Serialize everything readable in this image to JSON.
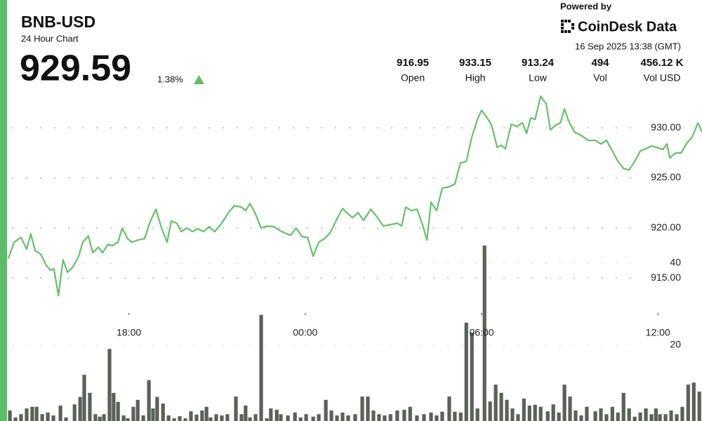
{
  "header": {
    "symbol": "BNB-USD",
    "subtitle": "24 Hour Chart",
    "price": "929.59",
    "change": "1.38%"
  },
  "brand": {
    "powered": "Powered by",
    "name": "CoinDesk Data",
    "timestamp": "16 Sep 2025 13:38 (GMT)"
  },
  "stats": [
    {
      "value": "916.95",
      "label": "Open"
    },
    {
      "value": "933.15",
      "label": "High"
    },
    {
      "value": "913.24",
      "label": "Low"
    },
    {
      "value": "494",
      "label": "Vol"
    },
    {
      "value": "456.12 K",
      "label": "Vol USD"
    }
  ],
  "chart_data": [
    {
      "type": "line",
      "color": "#66c06a",
      "grid": true,
      "xlim": [
        13.9,
        37.5
      ],
      "xticks": [
        {
          "value": 18,
          "label": "18:00"
        },
        {
          "value": 24,
          "label": "00:00"
        },
        {
          "value": 30,
          "label": "06:00"
        },
        {
          "value": 36,
          "label": "12:00"
        }
      ],
      "ylim": [
        912,
        934
      ],
      "yticks": [
        {
          "value": 915,
          "label": "915.00"
        },
        {
          "value": 920,
          "label": "920.00"
        },
        {
          "value": 925,
          "label": "925.00"
        },
        {
          "value": 930,
          "label": "930.00"
        }
      ],
      "x": [
        13.9,
        14.09,
        14.33,
        14.52,
        14.66,
        14.81,
        15.0,
        15.19,
        15.33,
        15.45,
        15.6,
        15.76,
        15.91,
        16.1,
        16.29,
        16.43,
        16.62,
        16.77,
        16.96,
        17.1,
        17.29,
        17.44,
        17.63,
        17.77,
        17.96,
        18.1,
        18.3,
        18.53,
        18.73,
        18.92,
        19.11,
        19.3,
        19.44,
        19.63,
        19.78,
        19.97,
        20.16,
        20.35,
        20.54,
        20.73,
        20.92,
        21.16,
        21.4,
        21.59,
        21.83,
        21.97,
        22.12,
        22.31,
        22.5,
        22.69,
        22.93,
        23.12,
        23.31,
        23.5,
        23.69,
        23.89,
        24.08,
        24.27,
        24.46,
        24.65,
        24.84,
        25.08,
        25.27,
        25.41,
        25.61,
        25.8,
        25.99,
        26.23,
        26.42,
        26.66,
        26.9,
        27.13,
        27.28,
        27.42,
        27.61,
        27.8,
        27.99,
        28.14,
        28.28,
        28.47,
        28.66,
        28.9,
        29.09,
        29.28,
        29.48,
        29.67,
        29.86,
        30.0,
        30.19,
        30.34,
        30.53,
        30.67,
        30.81,
        31.01,
        31.2,
        31.39,
        31.53,
        31.67,
        31.82,
        32.01,
        32.2,
        32.34,
        32.53,
        32.68,
        32.82,
        32.96,
        33.16,
        33.39,
        33.63,
        33.87,
        34.06,
        34.25,
        34.45,
        34.64,
        34.83,
        35.02,
        35.21,
        35.4,
        35.59,
        35.78,
        35.97,
        36.17,
        36.31,
        36.4,
        36.6,
        36.79,
        36.98,
        37.17,
        37.36,
        37.5
      ],
      "values": [
        916.95,
        918.57,
        919.06,
        917.87,
        919.41,
        917.73,
        917.38,
        916.26,
        915.77,
        915.91,
        913.24,
        916.82,
        915.56,
        916.12,
        917.17,
        918.57,
        919.2,
        917.52,
        918.08,
        917.52,
        918.36,
        918.22,
        918.57,
        919.98,
        918.92,
        918.57,
        918.78,
        918.92,
        920.68,
        921.87,
        919.98,
        918.57,
        920.68,
        920.47,
        919.63,
        919.98,
        919.63,
        919.91,
        919.63,
        920.12,
        919.63,
        920.47,
        921.59,
        922.22,
        922.08,
        921.73,
        922.43,
        921.38,
        919.98,
        920.19,
        920.12,
        919.77,
        919.48,
        919.27,
        919.98,
        919.13,
        919.06,
        917.17,
        918.57,
        918.92,
        919.48,
        920.89,
        921.94,
        921.52,
        921.03,
        921.52,
        920.75,
        921.87,
        921.17,
        920.19,
        920.33,
        920.47,
        920.19,
        922.08,
        921.73,
        921.87,
        920.33,
        918.78,
        922.57,
        921.73,
        923.97,
        924.11,
        924.39,
        926.49,
        926.64,
        929.09,
        930.84,
        931.75,
        930.98,
        930.28,
        928.04,
        928.25,
        927.9,
        930.35,
        930.14,
        930.49,
        929.44,
        930.98,
        930.84,
        933.15,
        932.38,
        929.79,
        930.28,
        930.49,
        931.89,
        930.7,
        929.58,
        929.23,
        928.74,
        928.74,
        928.39,
        928.74,
        927.69,
        926.64,
        925.93,
        925.79,
        926.64,
        927.69,
        927.9,
        928.18,
        928.04,
        927.83,
        928.39,
        926.99,
        927.48,
        927.48,
        928.46,
        929.09,
        930.49,
        929.59
      ]
    },
    {
      "type": "bar",
      "color": "#5b6159",
      "xlim": [
        13.9,
        37.5
      ],
      "ylim": [
        0,
        44.5
      ],
      "yticks": [
        20,
        40
      ],
      "x": [
        13.95,
        14.14,
        14.33,
        14.52,
        14.71,
        14.86,
        15.05,
        15.24,
        15.43,
        15.67,
        15.86,
        16.15,
        16.34,
        16.48,
        16.67,
        16.86,
        17.01,
        17.15,
        17.34,
        17.48,
        17.63,
        17.82,
        17.96,
        18.15,
        18.3,
        18.49,
        18.68,
        18.82,
        18.96,
        19.16,
        19.35,
        19.54,
        19.73,
        19.92,
        20.11,
        20.3,
        20.49,
        20.64,
        20.78,
        20.97,
        21.16,
        21.35,
        21.64,
        21.83,
        21.97,
        22.12,
        22.31,
        22.5,
        22.69,
        22.83,
        23.03,
        23.17,
        23.41,
        23.65,
        23.84,
        24.03,
        24.27,
        24.46,
        24.7,
        24.89,
        25.08,
        25.27,
        25.46,
        25.7,
        25.94,
        26.13,
        26.32,
        26.51,
        26.7,
        26.9,
        27.13,
        27.37,
        27.57,
        27.8,
        28.04,
        28.28,
        28.47,
        28.66,
        28.9,
        29.09,
        29.29,
        29.48,
        29.67,
        29.86,
        30.1,
        30.29,
        30.48,
        30.67,
        30.86,
        31.05,
        31.24,
        31.44,
        31.63,
        31.82,
        32.01,
        32.25,
        32.44,
        32.63,
        32.82,
        33.01,
        33.2,
        33.39,
        33.58,
        33.87,
        34.06,
        34.25,
        34.45,
        34.64,
        34.83,
        35.02,
        35.21,
        35.4,
        35.59,
        35.78,
        35.93,
        36.07,
        36.26,
        36.45,
        36.64,
        36.83,
        37.03,
        37.22,
        37.41
      ],
      "values": [
        4.1,
        2.4,
        3.2,
        4.6,
        5.0,
        5.0,
        3.2,
        3.6,
        2.9,
        5.3,
        2.4,
        5.6,
        7.4,
        12.8,
        8.4,
        3.2,
        2.6,
        3.2,
        19.1,
        8.4,
        6.2,
        2.9,
        2.2,
        5.0,
        6.7,
        2.9,
        11.5,
        4.6,
        7.4,
        5.8,
        2.9,
        2.2,
        2.7,
        2.2,
        3.9,
        3.1,
        4.1,
        5.0,
        2.4,
        3.2,
        2.9,
        3.2,
        7.5,
        3.2,
        5.3,
        2.4,
        3.2,
        27.4,
        2.2,
        4.6,
        4.3,
        3.2,
        2.9,
        3.6,
        2.4,
        3.2,
        2.6,
        3.2,
        6.7,
        4.1,
        2.9,
        3.6,
        2.9,
        3.2,
        7.5,
        7.5,
        4.1,
        3.2,
        2.9,
        3.2,
        4.1,
        4.3,
        5.0,
        2.9,
        3.2,
        3.6,
        2.9,
        3.8,
        7.5,
        3.8,
        3.6,
        25.5,
        23.1,
        4.6,
        44.3,
        6.3,
        10.4,
        8.4,
        6.7,
        4.6,
        3.2,
        7.0,
        5.3,
        5.5,
        5.0,
        3.9,
        5.6,
        3.6,
        10.4,
        7.5,
        4.1,
        2.9,
        5.0,
        3.9,
        4.6,
        3.2,
        5.0,
        3.6,
        8.4,
        4.6,
        2.6,
        3.6,
        4.6,
        3.2,
        4.6,
        3.2,
        3.2,
        4.1,
        3.2,
        5.0,
        10.4,
        10.9,
        8.7
      ]
    }
  ]
}
